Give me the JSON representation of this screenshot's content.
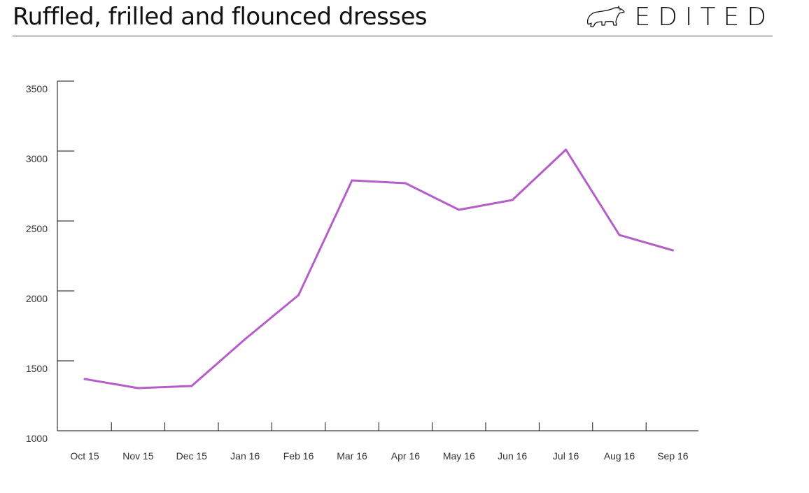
{
  "header": {
    "title": "Ruffled, frilled and flounced dresses",
    "brand_name": "EDITED",
    "brand_icon": "polar-bear-icon"
  },
  "colors": {
    "line": "#b55ec8",
    "axis": "#111111",
    "text": "#333333"
  },
  "chart_data": {
    "type": "line",
    "title": "Ruffled, frilled and flounced dresses",
    "xlabel": "",
    "ylabel": "",
    "categories": [
      "Oct 15",
      "Nov 15",
      "Dec 15",
      "Jan 16",
      "Feb 16",
      "Mar 16",
      "Apr 16",
      "May 16",
      "Jun 16",
      "Jul 16",
      "Aug 16",
      "Sep 16"
    ],
    "values": [
      1370,
      1305,
      1320,
      1655,
      1970,
      2790,
      2770,
      2580,
      2650,
      3010,
      2400,
      2290
    ],
    "ylim": [
      1000,
      3500
    ],
    "yticks": [
      1000,
      1500,
      2000,
      2500,
      3000,
      3500
    ],
    "grid": false,
    "legend": "none"
  }
}
